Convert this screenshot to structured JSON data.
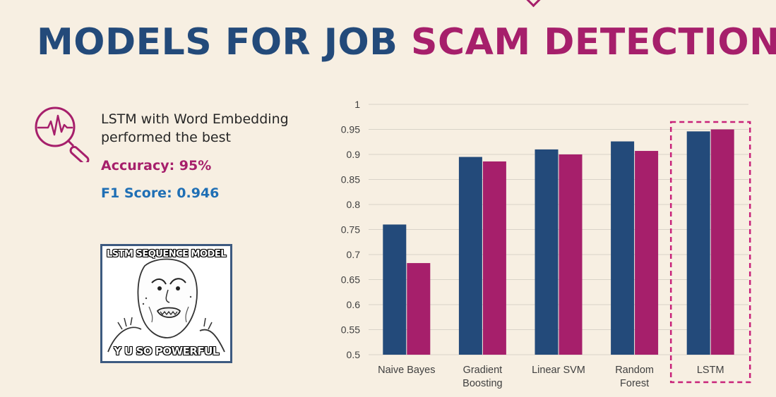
{
  "title": {
    "part1": "MODELS FOR JOB ",
    "part2": "SCAM DETECTION"
  },
  "summary": {
    "line1": "LSTM with Word Embedding",
    "line2": "performed the best",
    "accuracy": "Accuracy: 95%",
    "f1": "F1 Score: 0.946"
  },
  "meme": {
    "top_text": "LSTM SEQUENCE MODEL",
    "bottom_text": "Y U SO POWERFUL"
  },
  "icons": {
    "insight": "magnifier-heartbeat-icon"
  },
  "colors": {
    "title_blue": "#234a7a",
    "title_magenta": "#a61f6b",
    "series1": "#234a7a",
    "series2": "#a61f6b",
    "highlight": "#c8237a"
  },
  "chart_data": {
    "type": "bar",
    "categories": [
      [
        "Naive Bayes"
      ],
      [
        "Gradient",
        "Boosting"
      ],
      [
        "Linear SVM"
      ],
      [
        "Random",
        "Forest"
      ],
      [
        "LSTM"
      ]
    ],
    "series": [
      {
        "values": [
          0.76,
          0.895,
          0.91,
          0.926,
          0.946
        ]
      },
      {
        "values": [
          0.683,
          0.886,
          0.9,
          0.907,
          0.95
        ]
      }
    ],
    "ylim": [
      0.5,
      1
    ],
    "yticks": [
      "0.5",
      "0.55",
      "0.6",
      "0.65",
      "0.7",
      "0.75",
      "0.8",
      "0.85",
      "0.9",
      "0.95",
      "1"
    ],
    "grid": true,
    "highlighted_category": "LSTM",
    "title": "",
    "xlabel": "",
    "ylabel": ""
  }
}
